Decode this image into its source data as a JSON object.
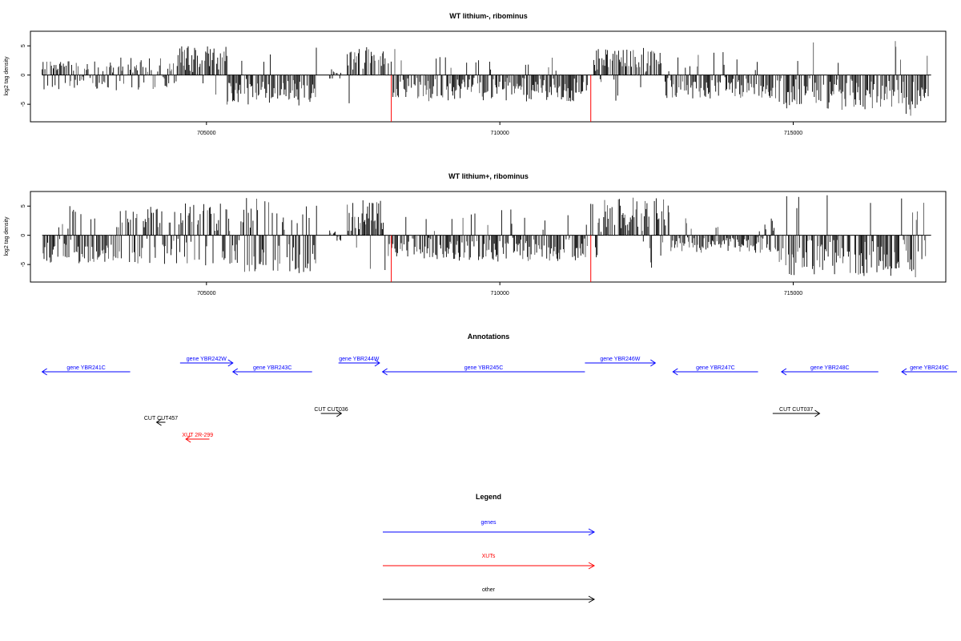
{
  "chart_data": [
    {
      "type": "bar",
      "title": "WT lithium-, ribominus",
      "xlabel": "",
      "ylabel": "log2 tag density",
      "xlim": [
        702000,
        717600
      ],
      "ylim": [
        -8,
        7.5
      ],
      "xticks": [
        705000,
        710000,
        715000
      ],
      "xtick_labels": [
        "705000",
        "710000",
        "715000"
      ],
      "yticks": [
        5,
        0,
        -5
      ],
      "ytick_labels": [
        "5",
        "0",
        "-5"
      ],
      "markers_x": [
        708150,
        711550
      ],
      "marker_color": "#ff0000",
      "segments": [
        {
          "from": 702200,
          "to": 703400,
          "level": 0.2,
          "amp": 2.5
        },
        {
          "from": 703400,
          "to": 704500,
          "level": 0.3,
          "amp": 3.0
        },
        {
          "from": 704500,
          "to": 705350,
          "level": 0.9,
          "amp": 5.0
        },
        {
          "from": 705350,
          "to": 706900,
          "level": -0.9,
          "amp": 5.2
        },
        {
          "from": 707100,
          "to": 707300,
          "level": 0.1,
          "amp": 1.0
        },
        {
          "from": 707400,
          "to": 708050,
          "level": 0.95,
          "amp": 5.0
        },
        {
          "from": 708100,
          "to": 711500,
          "level": -0.8,
          "amp": 4.5
        },
        {
          "from": 711600,
          "to": 712750,
          "level": 0.85,
          "amp": 4.8
        },
        {
          "from": 712800,
          "to": 714700,
          "level": -0.8,
          "amp": 4.0
        },
        {
          "from": 714700,
          "to": 716750,
          "level": -0.9,
          "amp": 6.0
        },
        {
          "from": 716750,
          "to": 717300,
          "level": -0.85,
          "amp": 7.0
        }
      ]
    },
    {
      "type": "bar",
      "title": "WT lithium+, ribominus",
      "xlabel": "",
      "ylabel": "log2 tag density",
      "xlim": [
        702000,
        717600
      ],
      "ylim": [
        -8,
        7.5
      ],
      "xticks": [
        705000,
        710000,
        715000
      ],
      "xtick_labels": [
        "705000",
        "710000",
        "715000"
      ],
      "yticks": [
        5,
        0,
        -5
      ],
      "ytick_labels": [
        "5",
        "0",
        "-5"
      ],
      "markers_x": [
        708150,
        711550
      ],
      "marker_color": "#ff0000",
      "segments": [
        {
          "from": 702200,
          "to": 703500,
          "level": -0.6,
          "amp": 5.0
        },
        {
          "from": 703500,
          "to": 704500,
          "level": 0.1,
          "amp": 5.0
        },
        {
          "from": 704500,
          "to": 705400,
          "level": 0.3,
          "amp": 5.5
        },
        {
          "from": 705400,
          "to": 706900,
          "level": -0.5,
          "amp": 6.5
        },
        {
          "from": 707100,
          "to": 707300,
          "level": 0.1,
          "amp": 1.0
        },
        {
          "from": 707400,
          "to": 708050,
          "level": 0.9,
          "amp": 6.0
        },
        {
          "from": 708100,
          "to": 711500,
          "level": -0.8,
          "amp": 4.5
        },
        {
          "from": 711550,
          "to": 712900,
          "level": 0.85,
          "amp": 6.5
        },
        {
          "from": 712900,
          "to": 714700,
          "level": -0.8,
          "amp": 3.0
        },
        {
          "from": 714700,
          "to": 716800,
          "level": -0.9,
          "amp": 7.0
        },
        {
          "from": 716800,
          "to": 717300,
          "level": -0.8,
          "amp": 7.5
        }
      ]
    }
  ],
  "annotations": {
    "title": "Annotations",
    "xlim": [
      702000,
      717600
    ],
    "features": [
      {
        "label": "gene YBR241C",
        "start": 702200,
        "end": 703700,
        "strand": "-",
        "row": 1,
        "color": "#0000ff"
      },
      {
        "label": "gene YBR242W",
        "start": 704550,
        "end": 705450,
        "strand": "+",
        "row": 0,
        "color": "#0000ff"
      },
      {
        "label": "gene YBR243C",
        "start": 705450,
        "end": 706800,
        "strand": "-",
        "row": 1,
        "color": "#0000ff"
      },
      {
        "label": "gene YBR244W",
        "start": 707250,
        "end": 707950,
        "strand": "+",
        "row": 0,
        "color": "#0000ff"
      },
      {
        "label": "gene YBR245C",
        "start": 708000,
        "end": 711450,
        "strand": "-",
        "row": 1,
        "color": "#0000ff"
      },
      {
        "label": "gene YBR246W",
        "start": 711450,
        "end": 712650,
        "strand": "+",
        "row": 0,
        "color": "#0000ff"
      },
      {
        "label": "gene YBR247C",
        "start": 712950,
        "end": 714400,
        "strand": "-",
        "row": 1,
        "color": "#0000ff"
      },
      {
        "label": "gene YBR248C",
        "start": 714800,
        "end": 716450,
        "strand": "-",
        "row": 1,
        "color": "#0000ff"
      },
      {
        "label": "gene YBR249C",
        "start": 716850,
        "end": 717900,
        "strand": "-",
        "row": 1,
        "color": "#0000ff"
      },
      {
        "label": "CUT CUT457",
        "start": 704150,
        "end": 704300,
        "strand": "-",
        "row": 3,
        "color": "#000000"
      },
      {
        "label": "XUT 2R-299",
        "start": 704650,
        "end": 705050,
        "strand": "-",
        "row": 4,
        "color": "#ff0000"
      },
      {
        "label": "CUT CUT036",
        "start": 706950,
        "end": 707300,
        "strand": "+",
        "row": 2,
        "color": "#000000"
      },
      {
        "label": "CUT CUT037",
        "start": 714650,
        "end": 715450,
        "strand": "+",
        "row": 2,
        "color": "#000000"
      }
    ]
  },
  "legend": {
    "title": "Legend",
    "items": [
      {
        "label": "genes",
        "color": "#0000ff"
      },
      {
        "label": "XUTs",
        "color": "#ff0000"
      },
      {
        "label": "other",
        "color": "#000000"
      }
    ]
  }
}
